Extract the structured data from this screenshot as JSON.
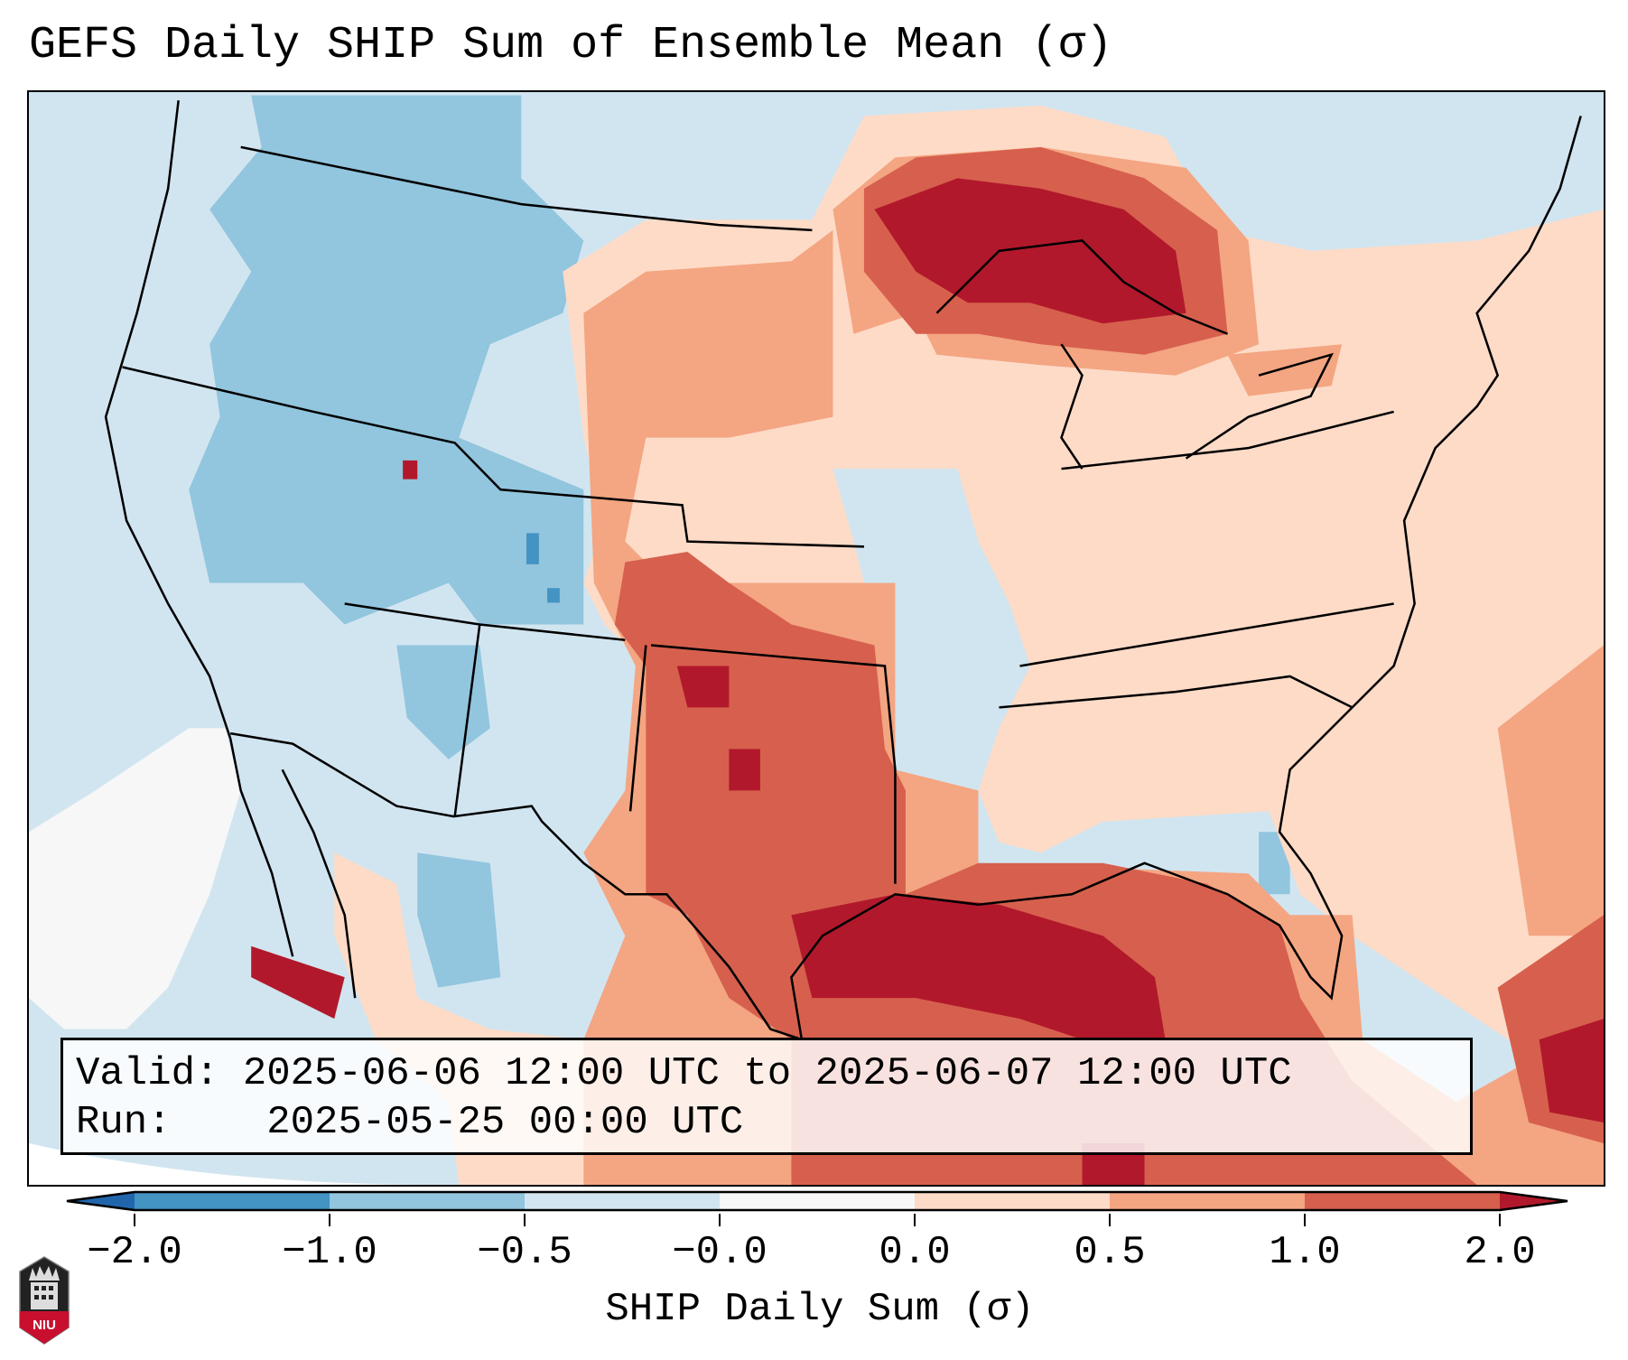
{
  "title": "GEFS Daily SHIP Sum of Ensemble Mean (σ)",
  "info": {
    "valid_label": "Valid:",
    "valid_value": "2025-06-06 12:00 UTC to 2025-06-07 12:00 UTC",
    "run_label": "Run:",
    "run_value": "2025-05-25 00:00 UTC"
  },
  "colorbar": {
    "label": "SHIP Daily Sum (σ)",
    "ticks": [
      "−2.0",
      "−1.0",
      "−0.5",
      "−0.0",
      "0.0",
      "0.5",
      "1.0",
      "2.0"
    ],
    "colors": [
      "#2166ac",
      "#4393c3",
      "#92c5de",
      "#d1e5f0",
      "#f7f7f7",
      "#fddbc7",
      "#f4a582",
      "#d6604d",
      "#b2182b"
    ]
  },
  "logo": {
    "text": "NIU"
  }
}
